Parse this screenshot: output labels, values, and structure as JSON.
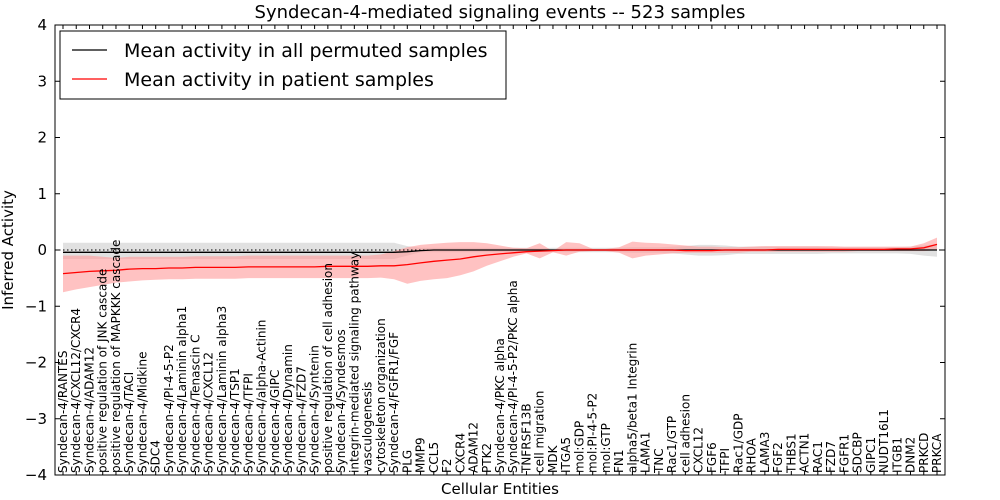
{
  "chart_data": {
    "type": "line",
    "title": "Syndecan-4-mediated signaling events -- 523 samples",
    "xlabel": "Cellular Entities",
    "ylabel": "Inferred Activity",
    "ylim": [
      -4,
      4
    ],
    "yticks": [
      "−4",
      "−3",
      "−2",
      "−1",
      "0",
      "1",
      "2",
      "3",
      "4"
    ],
    "legend": {
      "position": "top-left",
      "entries": [
        "Mean activity in all permuted samples",
        "Mean activity in patient samples"
      ]
    },
    "categories": [
      "Syndecan-4/RANTES",
      "Syndecan-4/CXCL12/CXCR4",
      "Syndecan-4/ADAM12",
      "positive regulation of JNK cascade",
      "positive regulation of MAPKKK cascade",
      "Syndecan-4/TACI",
      "Syndecan-4/Midkine",
      "SDC4",
      "Syndecan-4/PI-4-5-P2",
      "Syndecan-4/Laminin alpha1",
      "Syndecan-4/Tenascin C",
      "Syndecan-4/CXCL12",
      "Syndecan-4/Laminin alpha3",
      "Syndecan-4/TSP1",
      "Syndecan-4/TFPI",
      "Syndecan-4/alpha-Actinin",
      "Syndecan-4/GIPC",
      "Syndecan-4/Dynamin",
      "Syndecan-4/FZD7",
      "Syndecan-4/Syntenin",
      "positive regulation of cell adhesion",
      "Syndecan-4/Syndesmos",
      "integrin-mediated signaling pathway",
      "vasculogenesis",
      "cytoskeleton organization",
      "Syndecan-4/FGFR1/FGF",
      "PLG",
      "MMP9",
      "CCL5",
      "F2",
      "CXCR4",
      "ADAM12",
      "PTK2",
      "Syndecan-4/PKC alpha",
      "Syndecan-4/PI-4-5-P2/PKC alpha",
      "TNFRSF13B",
      "cell migration",
      "MDK",
      "ITGA5",
      "mol:GDP",
      "mol:PI-4-5-P2",
      "mol:GTP",
      "FN1",
      "alpha5/beta1 Integrin",
      "LAMA1",
      "TNC",
      "Rac1/GTP",
      "cell adhesion",
      "CXCL12",
      "FGF6",
      "TFPI",
      "Rac1/GDP",
      "RHOA",
      "LAMA3",
      "FGF2",
      "THBS1",
      "ACTN1",
      "RAC1",
      "FZD7",
      "FGFR1",
      "SDCBP",
      "GIPC1",
      "NUDT16L1",
      "ITGB1",
      "DNM2",
      "PRKCD",
      "PRKCA"
    ],
    "series": [
      {
        "name": "Mean activity in all permuted samples",
        "color": "#000000",
        "band_color": "#c8c8c8",
        "values": [
          -0.04,
          -0.04,
          -0.04,
          -0.04,
          -0.04,
          -0.04,
          -0.04,
          -0.04,
          -0.04,
          -0.04,
          -0.04,
          -0.04,
          -0.04,
          -0.04,
          -0.04,
          -0.04,
          -0.04,
          -0.04,
          -0.04,
          -0.04,
          -0.04,
          -0.04,
          -0.04,
          -0.04,
          -0.04,
          -0.04,
          -0.03,
          -0.01,
          0.0,
          0.0,
          0.0,
          0.0,
          0.0,
          0.0,
          0.0,
          0.0,
          0.0,
          0.0,
          0.0,
          0.0,
          0.0,
          0.0,
          0.0,
          0.0,
          0.0,
          0.0,
          0.0,
          0.0,
          0.0,
          0.0,
          0.0,
          0.0,
          0.0,
          0.0,
          0.0,
          0.0,
          0.0,
          0.0,
          0.0,
          0.0,
          0.0,
          0.0,
          0.0,
          0.0,
          0.0,
          0.0,
          0.0
        ],
        "lower": [
          -0.16,
          -0.16,
          -0.16,
          -0.16,
          -0.16,
          -0.16,
          -0.16,
          -0.16,
          -0.16,
          -0.16,
          -0.16,
          -0.16,
          -0.16,
          -0.16,
          -0.16,
          -0.16,
          -0.16,
          -0.16,
          -0.16,
          -0.16,
          -0.16,
          -0.16,
          -0.16,
          -0.16,
          -0.16,
          -0.16,
          -0.1,
          -0.04,
          -0.04,
          -0.04,
          -0.04,
          -0.04,
          -0.04,
          -0.04,
          -0.04,
          -0.04,
          -0.03,
          -0.04,
          -0.04,
          -0.04,
          -0.04,
          -0.04,
          -0.04,
          -0.05,
          -0.05,
          -0.05,
          -0.06,
          -0.08,
          -0.1,
          -0.1,
          -0.09,
          -0.07,
          -0.07,
          -0.07,
          -0.07,
          -0.07,
          -0.07,
          -0.07,
          -0.06,
          -0.06,
          -0.06,
          -0.06,
          -0.06,
          -0.06,
          -0.07,
          -0.1,
          -0.12
        ],
        "upper": [
          0.13,
          0.13,
          0.13,
          0.13,
          0.13,
          0.13,
          0.13,
          0.13,
          0.13,
          0.13,
          0.13,
          0.13,
          0.13,
          0.13,
          0.13,
          0.13,
          0.13,
          0.13,
          0.13,
          0.13,
          0.13,
          0.13,
          0.13,
          0.13,
          0.13,
          0.13,
          0.07,
          0.04,
          0.04,
          0.04,
          0.04,
          0.04,
          0.04,
          0.04,
          0.04,
          0.04,
          0.03,
          0.04,
          0.04,
          0.04,
          0.04,
          0.04,
          0.04,
          0.05,
          0.05,
          0.05,
          0.06,
          0.07,
          0.09,
          0.09,
          0.08,
          0.06,
          0.06,
          0.06,
          0.06,
          0.06,
          0.06,
          0.06,
          0.05,
          0.05,
          0.05,
          0.05,
          0.05,
          0.05,
          0.06,
          0.08,
          0.1
        ]
      },
      {
        "name": "Mean activity in patient samples",
        "color": "#ff0000",
        "band_color": "#ff9999",
        "values": [
          -0.42,
          -0.4,
          -0.38,
          -0.37,
          -0.36,
          -0.34,
          -0.33,
          -0.33,
          -0.32,
          -0.32,
          -0.31,
          -0.31,
          -0.31,
          -0.31,
          -0.3,
          -0.3,
          -0.3,
          -0.3,
          -0.3,
          -0.3,
          -0.29,
          -0.29,
          -0.29,
          -0.29,
          -0.28,
          -0.28,
          -0.26,
          -0.23,
          -0.2,
          -0.18,
          -0.16,
          -0.12,
          -0.09,
          -0.07,
          -0.05,
          -0.03,
          -0.02,
          -0.01,
          0.0,
          0.0,
          0.0,
          0.0,
          0.0,
          0.0,
          0.0,
          0.0,
          0.0,
          -0.01,
          -0.01,
          -0.01,
          0.0,
          0.0,
          0.0,
          0.0,
          0.01,
          0.01,
          0.01,
          0.01,
          0.01,
          0.01,
          0.01,
          0.01,
          0.01,
          0.02,
          0.02,
          0.04,
          0.1
        ],
        "lower": [
          -0.75,
          -0.7,
          -0.66,
          -0.62,
          -0.58,
          -0.56,
          -0.54,
          -0.53,
          -0.52,
          -0.52,
          -0.51,
          -0.51,
          -0.51,
          -0.51,
          -0.5,
          -0.5,
          -0.5,
          -0.5,
          -0.5,
          -0.5,
          -0.5,
          -0.5,
          -0.5,
          -0.5,
          -0.49,
          -0.52,
          -0.6,
          -0.55,
          -0.52,
          -0.5,
          -0.45,
          -0.38,
          -0.28,
          -0.2,
          -0.12,
          -0.06,
          -0.15,
          -0.04,
          -0.1,
          -0.03,
          -0.02,
          -0.02,
          -0.05,
          -0.15,
          -0.1,
          -0.08,
          -0.06,
          -0.05,
          -0.05,
          -0.05,
          -0.05,
          -0.05,
          -0.03,
          -0.03,
          -0.03,
          -0.03,
          -0.03,
          -0.03,
          -0.03,
          -0.03,
          -0.02,
          -0.02,
          -0.02,
          -0.02,
          -0.02,
          -0.02,
          0.0
        ],
        "upper": [
          -0.1,
          -0.1,
          -0.1,
          -0.12,
          -0.14,
          -0.12,
          -0.12,
          -0.12,
          -0.12,
          -0.12,
          -0.11,
          -0.11,
          -0.11,
          -0.11,
          -0.1,
          -0.1,
          -0.1,
          -0.1,
          -0.1,
          -0.1,
          -0.1,
          -0.1,
          -0.1,
          -0.1,
          -0.08,
          -0.02,
          0.05,
          0.09,
          0.11,
          0.13,
          0.14,
          0.14,
          0.12,
          0.08,
          0.04,
          0.03,
          0.12,
          -0.02,
          0.14,
          0.12,
          0.02,
          0.02,
          0.05,
          0.15,
          0.13,
          0.12,
          0.1,
          0.08,
          0.06,
          0.06,
          0.05,
          0.05,
          0.06,
          0.07,
          0.07,
          0.07,
          0.07,
          0.07,
          0.07,
          0.06,
          0.06,
          0.06,
          0.06,
          0.06,
          0.06,
          0.12,
          0.22
        ]
      }
    ]
  }
}
